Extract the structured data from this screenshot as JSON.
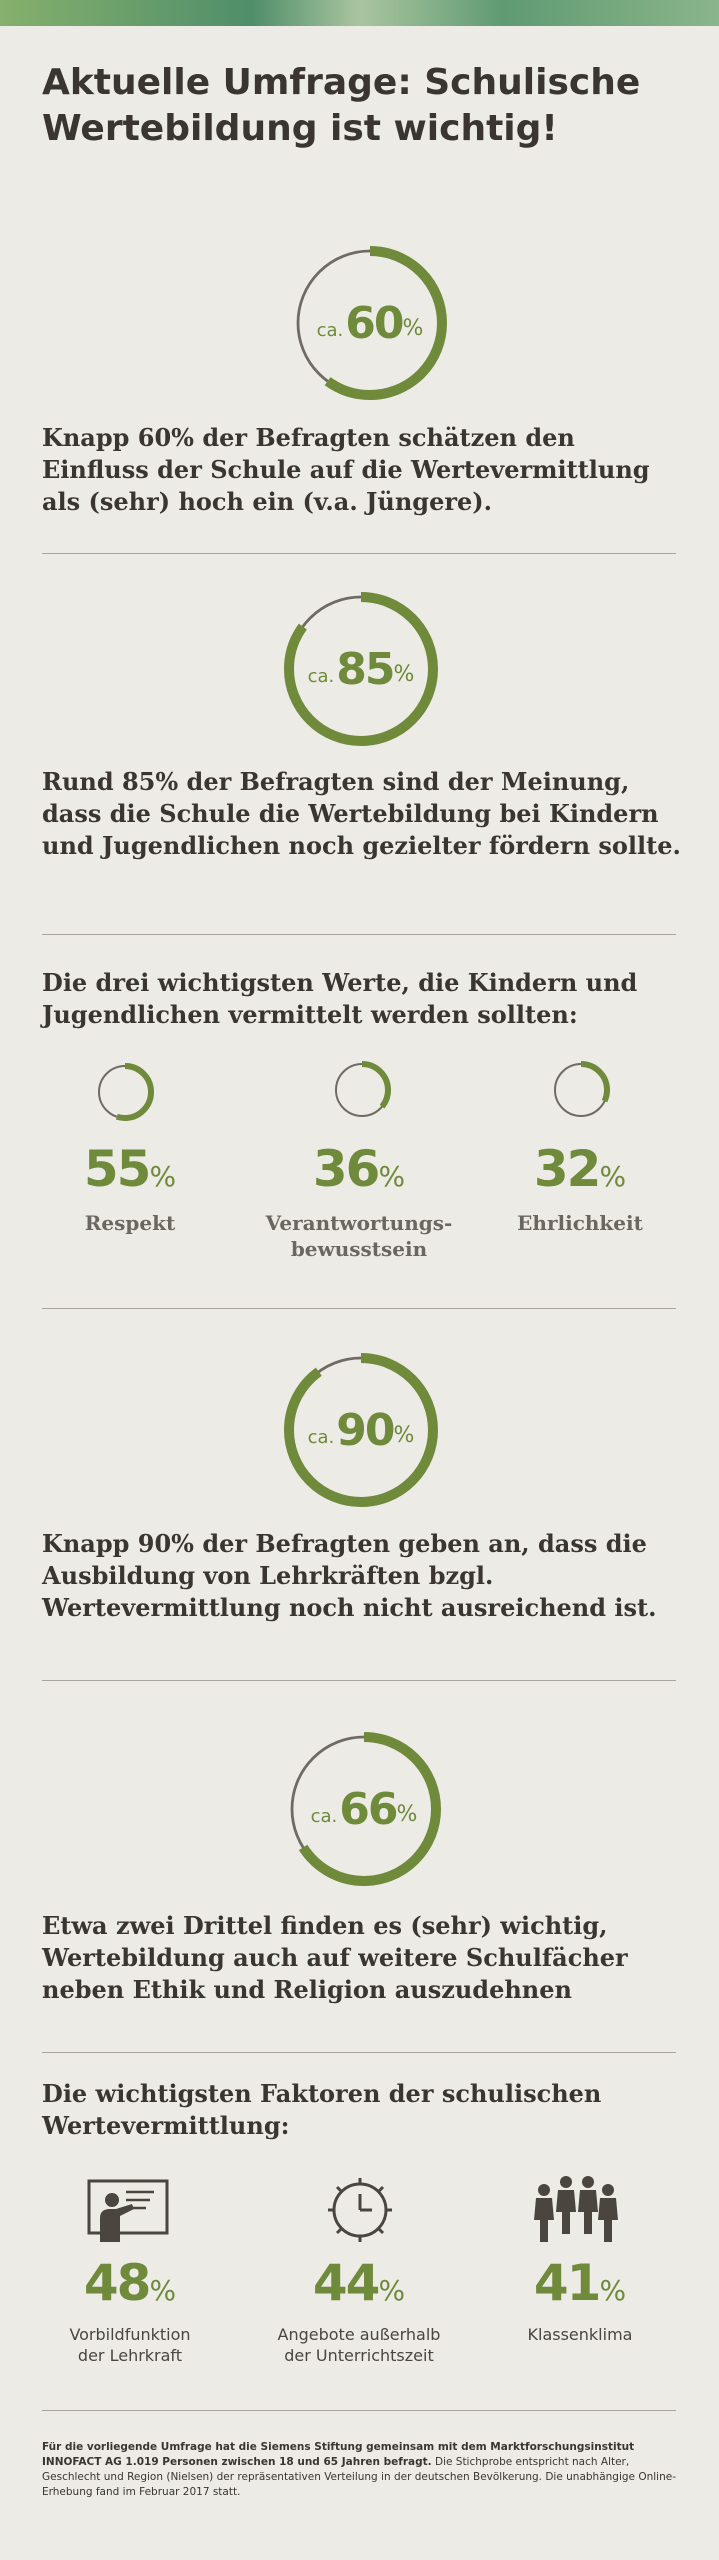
{
  "title": "Aktuelle Umfrage: Schulische Wertebildung ist wichtig!",
  "colors": {
    "accent": "#6e8a3a",
    "ring_bg": "#6f6a63",
    "text": "#3a3530",
    "background": "#ecebe5"
  },
  "sections": [
    {
      "prefix": "ca.",
      "value": 60,
      "unit": "%",
      "text": "Knapp 60% der Befragten schätzen den Einfluss der Schule auf die Wertevermittlung als (sehr) hoch ein (v.a. Jüngere)."
    },
    {
      "prefix": "ca.",
      "value": 85,
      "unit": "%",
      "text": "Rund 85% der Befragten sind der Meinung, dass die Schule die Wertebildung bei Kindern und Jugendlichen noch gezielter fördern sollte."
    },
    {
      "prefix": "ca.",
      "value": 90,
      "unit": "%",
      "text": "Knapp 90% der Befragten geben an, dass die Ausbildung von Lehrkräften bzgl. Wertevermittlung noch nicht ausreichend ist."
    },
    {
      "prefix": "ca.",
      "value": 66,
      "unit": "%",
      "text": "Etwa zwei Drittel finden es (sehr) wichtig, Wertebildung auch auf weitere Schulfächer neben Ethik und Religion auszudehnen"
    }
  ],
  "values_section": {
    "heading": "Die drei wichtigsten Werte, die Kindern und Jugendlichen vermittelt werden sollten:",
    "items": [
      {
        "value": 55,
        "unit": "%",
        "label": "Respekt"
      },
      {
        "value": 36,
        "unit": "%",
        "label": "Verantwortungs-\nbewusstsein"
      },
      {
        "value": 32,
        "unit": "%",
        "label": "Ehrlichkeit"
      }
    ]
  },
  "factors_section": {
    "heading": "Die wichtigsten Faktoren der schulischen Wertevermittlung:",
    "items": [
      {
        "value": 48,
        "unit": "%",
        "label": "Vorbildfunktion\nder Lehrkraft",
        "icon": "teacher-board-icon"
      },
      {
        "value": 44,
        "unit": "%",
        "label": "Angebote außerhalb\nder Unterrichtszeit",
        "icon": "clock-icon"
      },
      {
        "value": 41,
        "unit": "%",
        "label": "Klassenklima",
        "icon": "group-people-icon"
      }
    ]
  },
  "footnote": {
    "bold": "Für die vorliegende Umfrage hat die Siemens Stiftung gemeinsam mit dem Marktforschungsinstitut INNOFACT AG 1.019 Personen zwischen 18 und 65 Jahren befragt.",
    "rest": " Die Stichprobe entspricht nach Alter, Geschlecht und Region (Nielsen) der repräsentativen Verteilung in der deutschen Bevölkerung. Die unabhängige Online-Erhebung fand im Februar 2017 statt."
  }
}
